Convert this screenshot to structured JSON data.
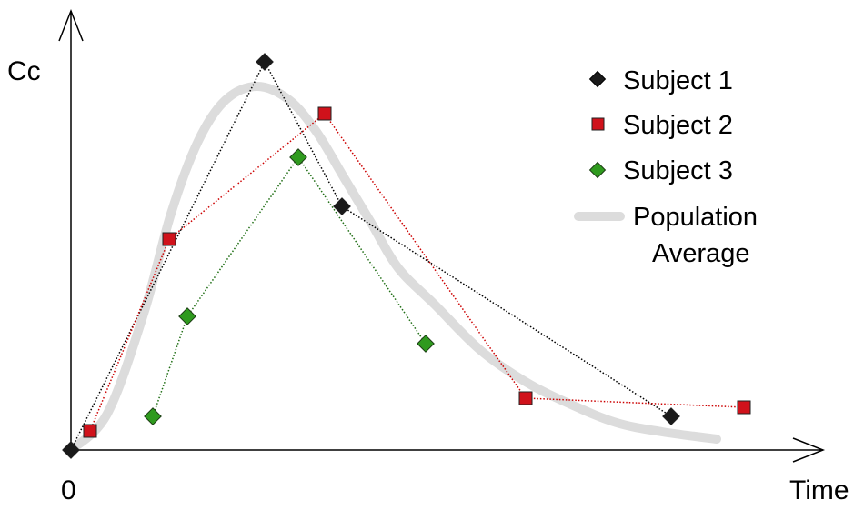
{
  "chart_data": {
    "type": "line",
    "ylabel": "Cc",
    "xlabel": "Time",
    "x_tick_labels": [
      "0"
    ],
    "xlim": [
      0,
      830
    ],
    "ylim": [
      0,
      440
    ],
    "grid": false,
    "legend_position": "top-right",
    "series": [
      {
        "name": "Subject 1",
        "marker": "diamond",
        "color": "#1a1a1a",
        "line_color": "#000000",
        "points": [
          [
            0,
            0
          ],
          [
            213,
            427
          ],
          [
            298,
            268
          ],
          [
            660,
            37
          ]
        ]
      },
      {
        "name": "Subject 2",
        "marker": "square",
        "color": "#d0121b",
        "line_color": "#cc0000",
        "points": [
          [
            21,
            21
          ],
          [
            108,
            232
          ],
          [
            279,
            370
          ],
          [
            500,
            57
          ],
          [
            740,
            47
          ]
        ]
      },
      {
        "name": "Subject 3",
        "marker": "diamond",
        "color": "#2f9a1e",
        "line_color": "#1f6e14",
        "points": [
          [
            90,
            37
          ],
          [
            128,
            147
          ],
          [
            250,
            322
          ],
          [
            390,
            117
          ]
        ]
      }
    ],
    "population_average": {
      "name_lines": [
        "Population",
        "Average"
      ],
      "color": "#dcdcdc",
      "points": [
        [
          0,
          0
        ],
        [
          40,
          40
        ],
        [
          80,
          150
        ],
        [
          110,
          260
        ],
        [
          140,
          340
        ],
        [
          170,
          385
        ],
        [
          205,
          400
        ],
        [
          240,
          385
        ],
        [
          270,
          350
        ],
        [
          300,
          300
        ],
        [
          330,
          250
        ],
        [
          360,
          200
        ],
        [
          400,
          160
        ],
        [
          450,
          110
        ],
        [
          500,
          75
        ],
        [
          550,
          50
        ],
        [
          600,
          30
        ],
        [
          650,
          20
        ],
        [
          710,
          12
        ]
      ]
    }
  }
}
